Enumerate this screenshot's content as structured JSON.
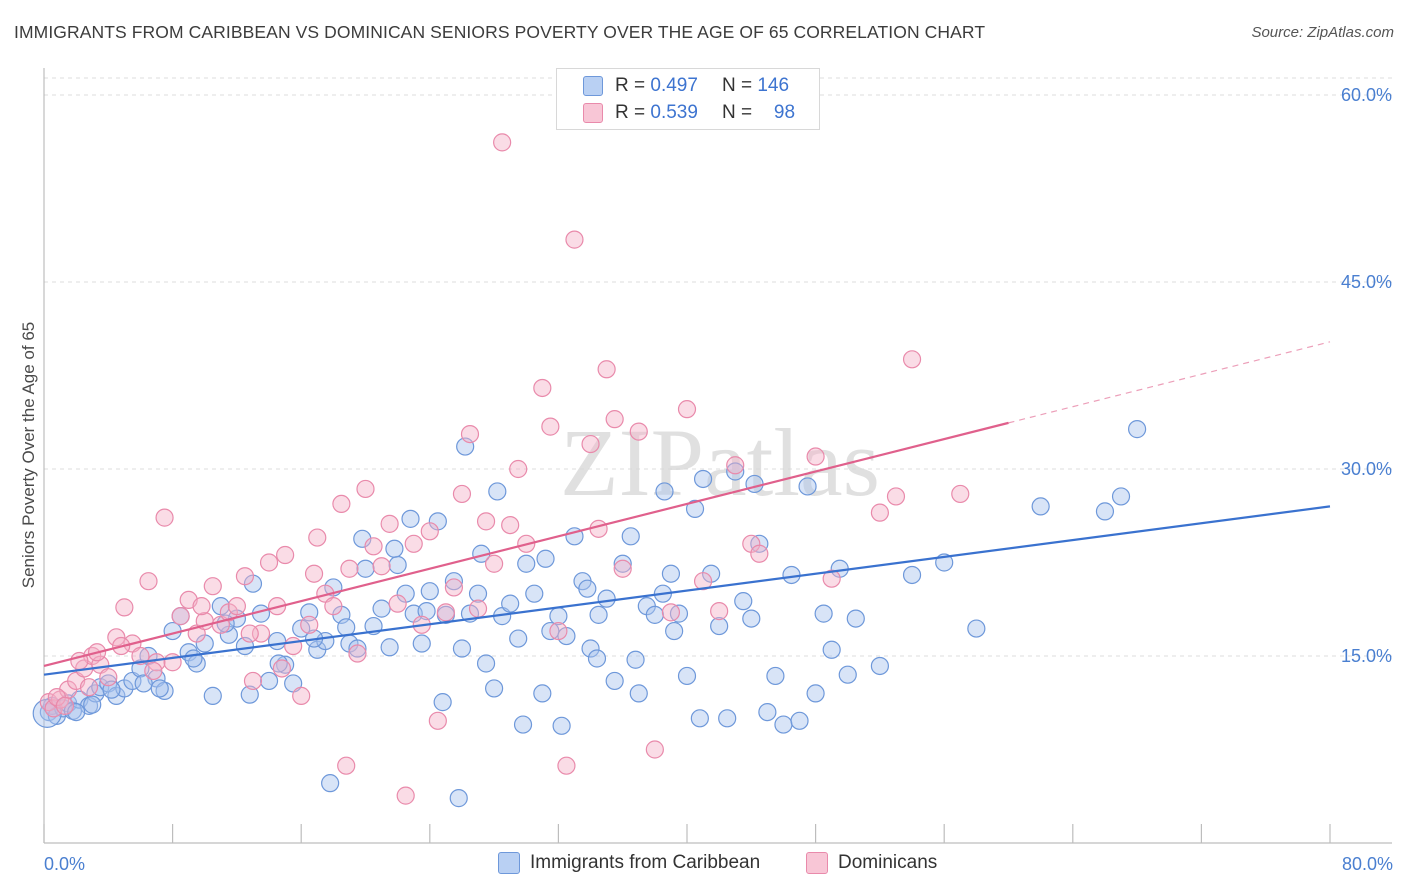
{
  "title": "IMMIGRANTS FROM CARIBBEAN VS DOMINICAN SENIORS POVERTY OVER THE AGE OF 65 CORRELATION CHART",
  "source": "Source: ZipAtlas.com",
  "legend": {
    "rows": [
      {
        "r_label": "R =",
        "r_value": "0.497",
        "n_label": "N =",
        "n_value": "146"
      },
      {
        "r_label": "R =",
        "r_value": "0.539",
        "n_label": "N =",
        "n_value": "98"
      }
    ]
  },
  "colors": {
    "blue": "#4a7fd0",
    "blue_fill": "#a9c4ee",
    "pink": "#e0608c",
    "pink_fill": "#f4b2c8"
  },
  "chart_data": {
    "type": "scatter",
    "title": "IMMIGRANTS FROM CARIBBEAN VS DOMINICAN SENIORS POVERTY OVER THE AGE OF 65 CORRELATION CHART",
    "xlabel": "",
    "ylabel": "Seniors Poverty Over the Age of 65",
    "xlim": [
      0,
      80
    ],
    "ylim": [
      0,
      62
    ],
    "x_tick_labels": [
      "0.0%",
      "80.0%"
    ],
    "y_ticks": [
      15,
      30,
      45,
      60
    ],
    "y_tick_labels": [
      "15.0%",
      "30.0%",
      "45.0%",
      "60.0%"
    ],
    "grid": true,
    "watermark": "ZIPatlas",
    "series": [
      {
        "name": "Immigrants from Caribbean",
        "color": "#4a7fd0",
        "R": 0.497,
        "N": 146,
        "trend": {
          "x": [
            0,
            80
          ],
          "y": [
            13.5,
            27.0
          ],
          "dashed_from": null
        },
        "points": [
          [
            0.3,
            10.5
          ],
          [
            0.5,
            11
          ],
          [
            0.8,
            10.2
          ],
          [
            1.2,
            10.8
          ],
          [
            1.5,
            11.2
          ],
          [
            1.8,
            10.6
          ],
          [
            2.2,
            11.5
          ],
          [
            2.8,
            11
          ],
          [
            3.2,
            12
          ],
          [
            3.5,
            12.5
          ],
          [
            4,
            12.8
          ],
          [
            4.5,
            11.8
          ],
          [
            5,
            12.4
          ],
          [
            5.5,
            13
          ],
          [
            6,
            14
          ],
          [
            6.5,
            15
          ],
          [
            7,
            13.2
          ],
          [
            7.5,
            12.2
          ],
          [
            8,
            17
          ],
          [
            8.5,
            18.2
          ],
          [
            9,
            15.3
          ],
          [
            9.5,
            14.4
          ],
          [
            10,
            16
          ],
          [
            10.5,
            11.8
          ],
          [
            11,
            19
          ],
          [
            11.5,
            16.7
          ],
          [
            12,
            18
          ],
          [
            12.5,
            15.8
          ],
          [
            13,
            20.8
          ],
          [
            13.5,
            18.4
          ],
          [
            14,
            13
          ],
          [
            14.5,
            16.2
          ],
          [
            15,
            14.3
          ],
          [
            15.5,
            12.8
          ],
          [
            16,
            17.2
          ],
          [
            16.5,
            18.5
          ],
          [
            17,
            15.5
          ],
          [
            17.5,
            16.2
          ],
          [
            18,
            20.5
          ],
          [
            18.5,
            18.3
          ],
          [
            19,
            16
          ],
          [
            19.5,
            15.6
          ],
          [
            20,
            22
          ],
          [
            20.5,
            17.4
          ],
          [
            21,
            18.8
          ],
          [
            21.5,
            15.7
          ],
          [
            22,
            22.3
          ],
          [
            22.5,
            20
          ],
          [
            23,
            18.4
          ],
          [
            23.5,
            16
          ],
          [
            24,
            20.2
          ],
          [
            24.5,
            25.8
          ],
          [
            25,
            18.3
          ],
          [
            25.5,
            21
          ],
          [
            26,
            15.6
          ],
          [
            26.5,
            18.4
          ],
          [
            27,
            20
          ],
          [
            27.5,
            14.4
          ],
          [
            28,
            12.4
          ],
          [
            28.5,
            18.2
          ],
          [
            29,
            19.2
          ],
          [
            29.5,
            16.4
          ],
          [
            30,
            22.4
          ],
          [
            30.5,
            20
          ],
          [
            31,
            12
          ],
          [
            31.5,
            17
          ],
          [
            32,
            18.2
          ],
          [
            32.5,
            16.6
          ],
          [
            33,
            24.6
          ],
          [
            33.5,
            21
          ],
          [
            34,
            15.6
          ],
          [
            34.5,
            18.3
          ],
          [
            35,
            19.6
          ],
          [
            35.5,
            13
          ],
          [
            36,
            22.4
          ],
          [
            36.5,
            24.6
          ],
          [
            37,
            12
          ],
          [
            37.5,
            19
          ],
          [
            38,
            18.3
          ],
          [
            38.5,
            20
          ],
          [
            39,
            21.6
          ],
          [
            39.5,
            18.4
          ],
          [
            40,
            13.4
          ],
          [
            40.5,
            26.8
          ],
          [
            41,
            29.2
          ],
          [
            41.5,
            21.6
          ],
          [
            42,
            17.4
          ],
          [
            42.5,
            10
          ],
          [
            43,
            29.8
          ],
          [
            43.5,
            19.4
          ],
          [
            44,
            18
          ],
          [
            44.5,
            24
          ],
          [
            45,
            10.5
          ],
          [
            45.5,
            13.4
          ],
          [
            46,
            9.5
          ],
          [
            46.5,
            21.5
          ],
          [
            47,
            9.8
          ],
          [
            47.5,
            28.6
          ],
          [
            48,
            12
          ],
          [
            48.5,
            18.4
          ],
          [
            49,
            15.5
          ],
          [
            49.5,
            22
          ],
          [
            50,
            13.5
          ],
          [
            50.5,
            18
          ],
          [
            52,
            14.2
          ],
          [
            54,
            21.5
          ],
          [
            56,
            22.5
          ],
          [
            58,
            17.2
          ],
          [
            62,
            27
          ],
          [
            66,
            26.6
          ],
          [
            67,
            27.8
          ],
          [
            68,
            33.2
          ],
          [
            2,
            10.5
          ],
          [
            3,
            11.1
          ],
          [
            4.2,
            12.3
          ],
          [
            6.2,
            12.8
          ],
          [
            7.2,
            12.4
          ],
          [
            9.3,
            14.8
          ],
          [
            11.3,
            17.6
          ],
          [
            12.8,
            11.9
          ],
          [
            14.6,
            14.4
          ],
          [
            16.8,
            16.4
          ],
          [
            17.8,
            4.8
          ],
          [
            18.8,
            17.3
          ],
          [
            19.8,
            24.4
          ],
          [
            21.8,
            23.6
          ],
          [
            22.8,
            26
          ],
          [
            23.8,
            18.6
          ],
          [
            24.8,
            11.3
          ],
          [
            25.8,
            3.6
          ],
          [
            26.2,
            31.8
          ],
          [
            27.2,
            23.2
          ],
          [
            28.2,
            28.2
          ],
          [
            29.8,
            9.5
          ],
          [
            31.2,
            22.8
          ],
          [
            32.2,
            9.4
          ],
          [
            33.8,
            20.4
          ],
          [
            34.4,
            14.8
          ],
          [
            36.8,
            14.7
          ],
          [
            38.6,
            28.2
          ],
          [
            39.2,
            17
          ],
          [
            40.8,
            10
          ],
          [
            44.2,
            28.8
          ]
        ]
      },
      {
        "name": "Dominicans",
        "color": "#e0608c",
        "R": 0.539,
        "N": 98,
        "trend": {
          "x": [
            0,
            80
          ],
          "y": [
            14.2,
            40.2
          ],
          "dashed_from": 60
        },
        "points": [
          [
            0.3,
            11.3
          ],
          [
            0.6,
            10.8
          ],
          [
            1,
            11.5
          ],
          [
            1.5,
            12.3
          ],
          [
            2,
            13
          ],
          [
            2.5,
            14
          ],
          [
            3,
            15
          ],
          [
            3.5,
            14.3
          ],
          [
            4,
            13.3
          ],
          [
            4.5,
            16.5
          ],
          [
            5,
            18.9
          ],
          [
            5.5,
            16
          ],
          [
            6,
            15
          ],
          [
            6.5,
            21
          ],
          [
            7,
            14.5
          ],
          [
            7.5,
            26.1
          ],
          [
            8,
            14.5
          ],
          [
            8.5,
            18.2
          ],
          [
            9,
            19.5
          ],
          [
            9.5,
            16.8
          ],
          [
            10,
            17.8
          ],
          [
            10.5,
            20.6
          ],
          [
            11,
            17.5
          ],
          [
            11.5,
            18.5
          ],
          [
            12,
            19
          ],
          [
            12.5,
            21.4
          ],
          [
            13,
            13
          ],
          [
            13.5,
            16.8
          ],
          [
            14,
            22.5
          ],
          [
            14.5,
            19
          ],
          [
            15,
            23.1
          ],
          [
            15.5,
            15.8
          ],
          [
            16,
            11.8
          ],
          [
            16.5,
            17.5
          ],
          [
            17,
            24.5
          ],
          [
            17.5,
            20
          ],
          [
            18,
            19
          ],
          [
            18.5,
            27.2
          ],
          [
            19,
            22
          ],
          [
            19.5,
            15.2
          ],
          [
            20,
            28.4
          ],
          [
            20.5,
            23.8
          ],
          [
            21,
            22.2
          ],
          [
            21.5,
            25.6
          ],
          [
            22,
            19.2
          ],
          [
            22.5,
            3.8
          ],
          [
            23,
            24
          ],
          [
            23.5,
            17.5
          ],
          [
            24,
            25
          ],
          [
            24.5,
            9.8
          ],
          [
            25,
            18.5
          ],
          [
            25.5,
            20.5
          ],
          [
            26,
            28
          ],
          [
            26.5,
            32.8
          ],
          [
            27,
            18.8
          ],
          [
            27.5,
            25.8
          ],
          [
            28,
            22.4
          ],
          [
            28.5,
            56.2
          ],
          [
            29,
            25.5
          ],
          [
            29.5,
            30
          ],
          [
            30,
            24
          ],
          [
            31,
            36.5
          ],
          [
            31.5,
            33.4
          ],
          [
            32,
            17
          ],
          [
            32.5,
            6.2
          ],
          [
            33,
            48.4
          ],
          [
            34,
            32
          ],
          [
            34.5,
            25.2
          ],
          [
            35,
            38
          ],
          [
            35.5,
            34
          ],
          [
            36,
            22
          ],
          [
            37,
            33
          ],
          [
            38,
            7.5
          ],
          [
            39,
            18.5
          ],
          [
            40,
            34.8
          ],
          [
            41,
            21
          ],
          [
            42,
            18.6
          ],
          [
            43,
            30.3
          ],
          [
            44,
            24
          ],
          [
            44.5,
            23.2
          ],
          [
            48,
            31
          ],
          [
            49,
            21.2
          ],
          [
            52,
            26.5
          ],
          [
            53,
            27.8
          ],
          [
            54,
            38.8
          ],
          [
            57,
            28
          ],
          [
            0.8,
            11.7
          ],
          [
            1.3,
            11
          ],
          [
            2.2,
            14.6
          ],
          [
            2.8,
            12.5
          ],
          [
            3.3,
            15.3
          ],
          [
            4.8,
            15.8
          ],
          [
            6.8,
            13.8
          ],
          [
            9.8,
            19
          ],
          [
            12.8,
            16.8
          ],
          [
            14.8,
            14
          ],
          [
            16.8,
            21.6
          ],
          [
            18.8,
            6.2
          ]
        ]
      }
    ]
  },
  "bottom_legend": {
    "items": [
      {
        "label": "Immigrants from Caribbean"
      },
      {
        "label": "Dominicans"
      }
    ]
  }
}
